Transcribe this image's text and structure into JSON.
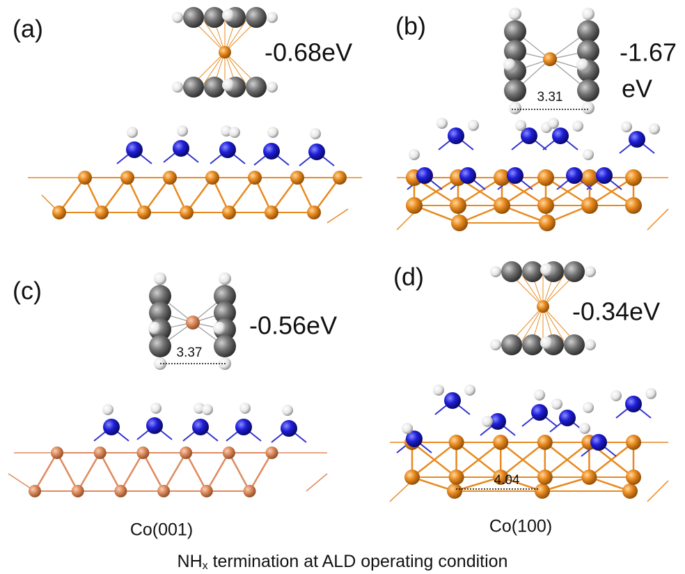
{
  "panels": [
    {
      "label": "(a)",
      "energy": [
        "-0.68eV"
      ]
    },
    {
      "label": "(b)",
      "energy": [
        "-1.67",
        "eV"
      ],
      "distance": 3.31
    },
    {
      "label": "(c)",
      "energy": [
        "-0.56eV"
      ],
      "distance": 3.37
    },
    {
      "label": "(d)",
      "energy": [
        "-0.34eV"
      ],
      "surface_distance": 4.04
    }
  ],
  "surfaces": [
    "Co(001)",
    "Co(100)"
  ],
  "caption": {
    "main": "NH",
    "sub": "x",
    "rest": " termination at ALD operating condition"
  }
}
